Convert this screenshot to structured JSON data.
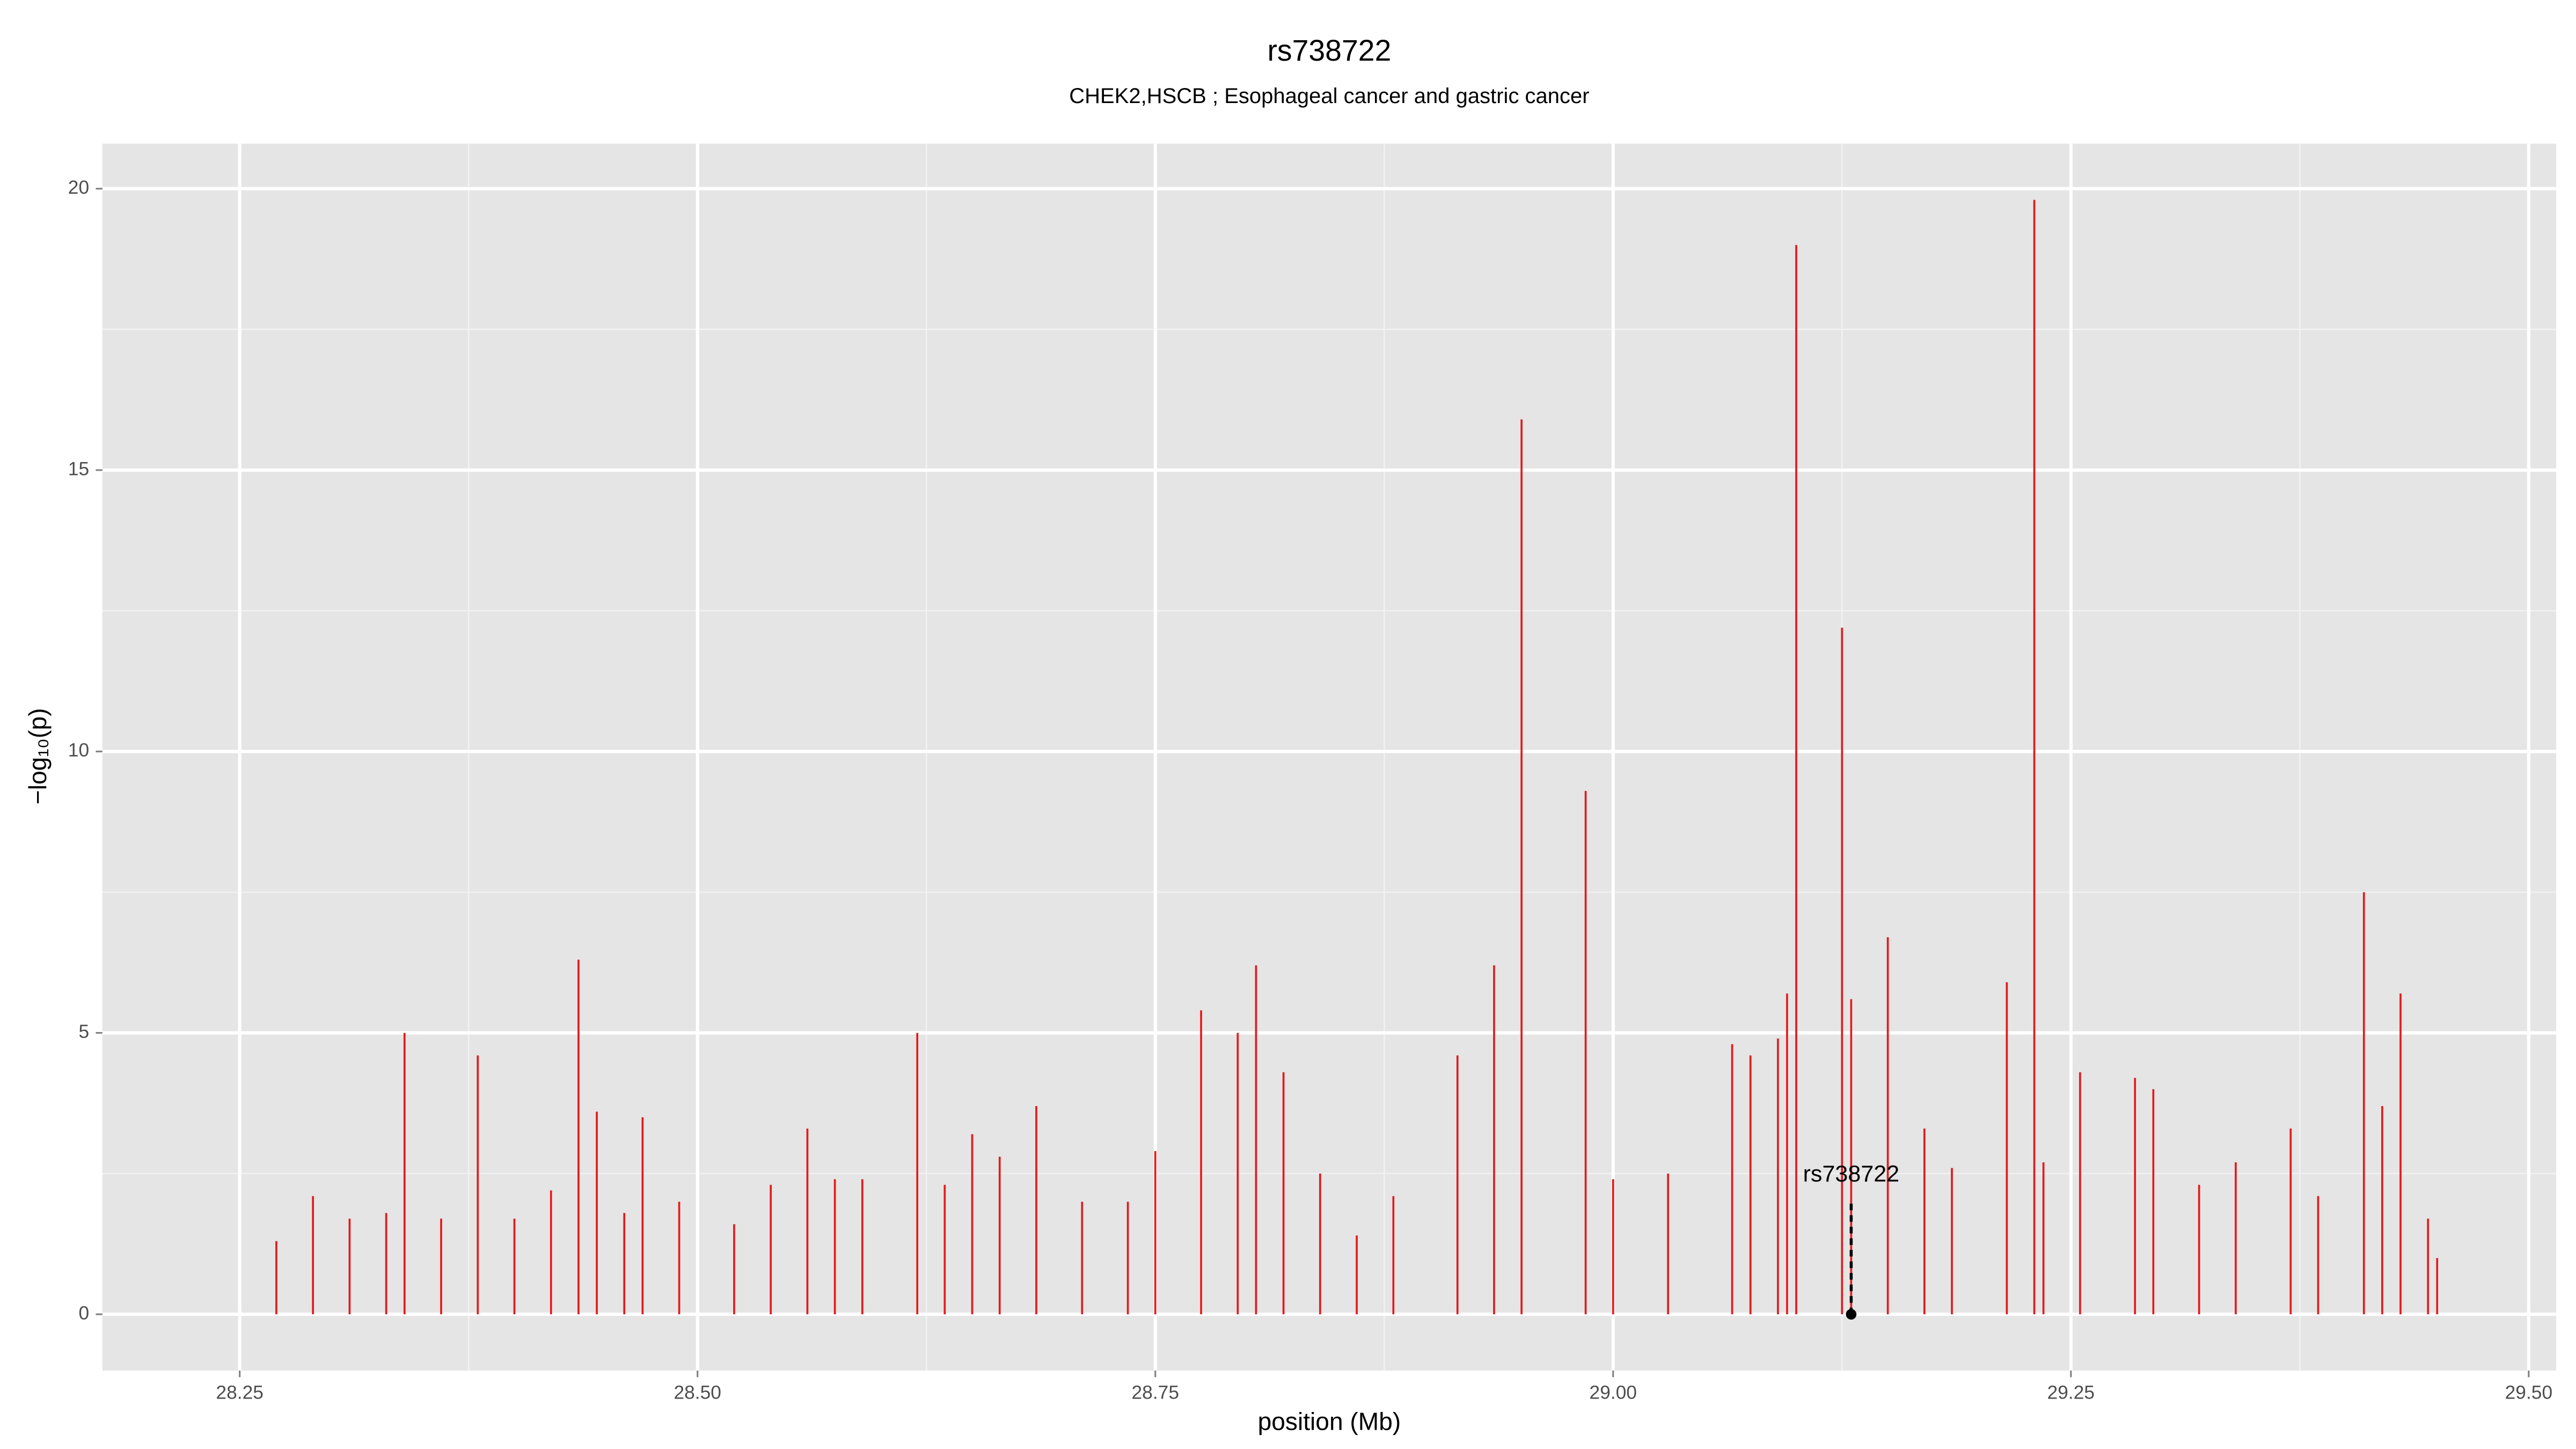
{
  "chart_data": {
    "type": "spike",
    "title": "rs738722",
    "subtitle": "CHEK2,HSCB ; Esophageal cancer and gastric cancer",
    "x_label": "position (Mb)",
    "y_label": "−log₁₀(p)",
    "color": "#e41a1c",
    "x": [
      28.27,
      28.29,
      28.31,
      28.33,
      28.34,
      28.36,
      28.38,
      28.4,
      28.42,
      28.435,
      28.445,
      28.46,
      28.47,
      28.49,
      28.52,
      28.54,
      28.56,
      28.575,
      28.59,
      28.62,
      28.635,
      28.65,
      28.665,
      28.685,
      28.71,
      28.735,
      28.75,
      28.775,
      28.795,
      28.805,
      28.82,
      28.84,
      28.86,
      28.88,
      28.915,
      28.935,
      28.95,
      28.985,
      29.0,
      29.03,
      29.065,
      29.075,
      29.09,
      29.095,
      29.1,
      29.125,
      29.13,
      29.15,
      29.17,
      29.185,
      29.215,
      29.23,
      29.235,
      29.255,
      29.285,
      29.295,
      29.32,
      29.34,
      29.37,
      29.385,
      29.41,
      29.42,
      29.43,
      29.445,
      29.45
    ],
    "values": [
      1.3,
      2.1,
      1.7,
      1.8,
      5.0,
      1.7,
      4.6,
      1.7,
      2.2,
      6.3,
      3.6,
      1.8,
      3.5,
      2.0,
      1.6,
      2.3,
      3.3,
      2.4,
      2.4,
      5.0,
      2.3,
      3.2,
      2.8,
      3.7,
      2.0,
      2.0,
      2.9,
      5.4,
      5.0,
      6.2,
      4.3,
      2.5,
      1.4,
      2.1,
      4.6,
      6.2,
      15.9,
      9.3,
      2.4,
      2.5,
      4.8,
      4.6,
      4.9,
      5.7,
      19.0,
      12.2,
      5.6,
      6.7,
      3.3,
      2.6,
      5.9,
      19.8,
      2.7,
      4.3,
      4.2,
      4.0,
      2.3,
      2.7,
      3.3,
      2.1,
      7.5,
      3.7,
      5.7,
      1.7,
      1.0
    ],
    "annotation": {
      "text": "rs738722",
      "x": 29.13,
      "y": 0,
      "top": 2.0
    },
    "xlim": [
      28.175,
      29.515
    ],
    "ylim": [
      -1.0,
      20.8
    ],
    "xticks": [
      28.25,
      {
        "value": 28.5,
        "label": "28.50"
      },
      28.75,
      {
        "value": 29.0,
        "label": "29.00"
      },
      29.25,
      {
        "value": 29.5,
        "label": "29.50"
      }
    ],
    "yticks": [
      0,
      5,
      10,
      15,
      20
    ],
    "grid": true
  }
}
